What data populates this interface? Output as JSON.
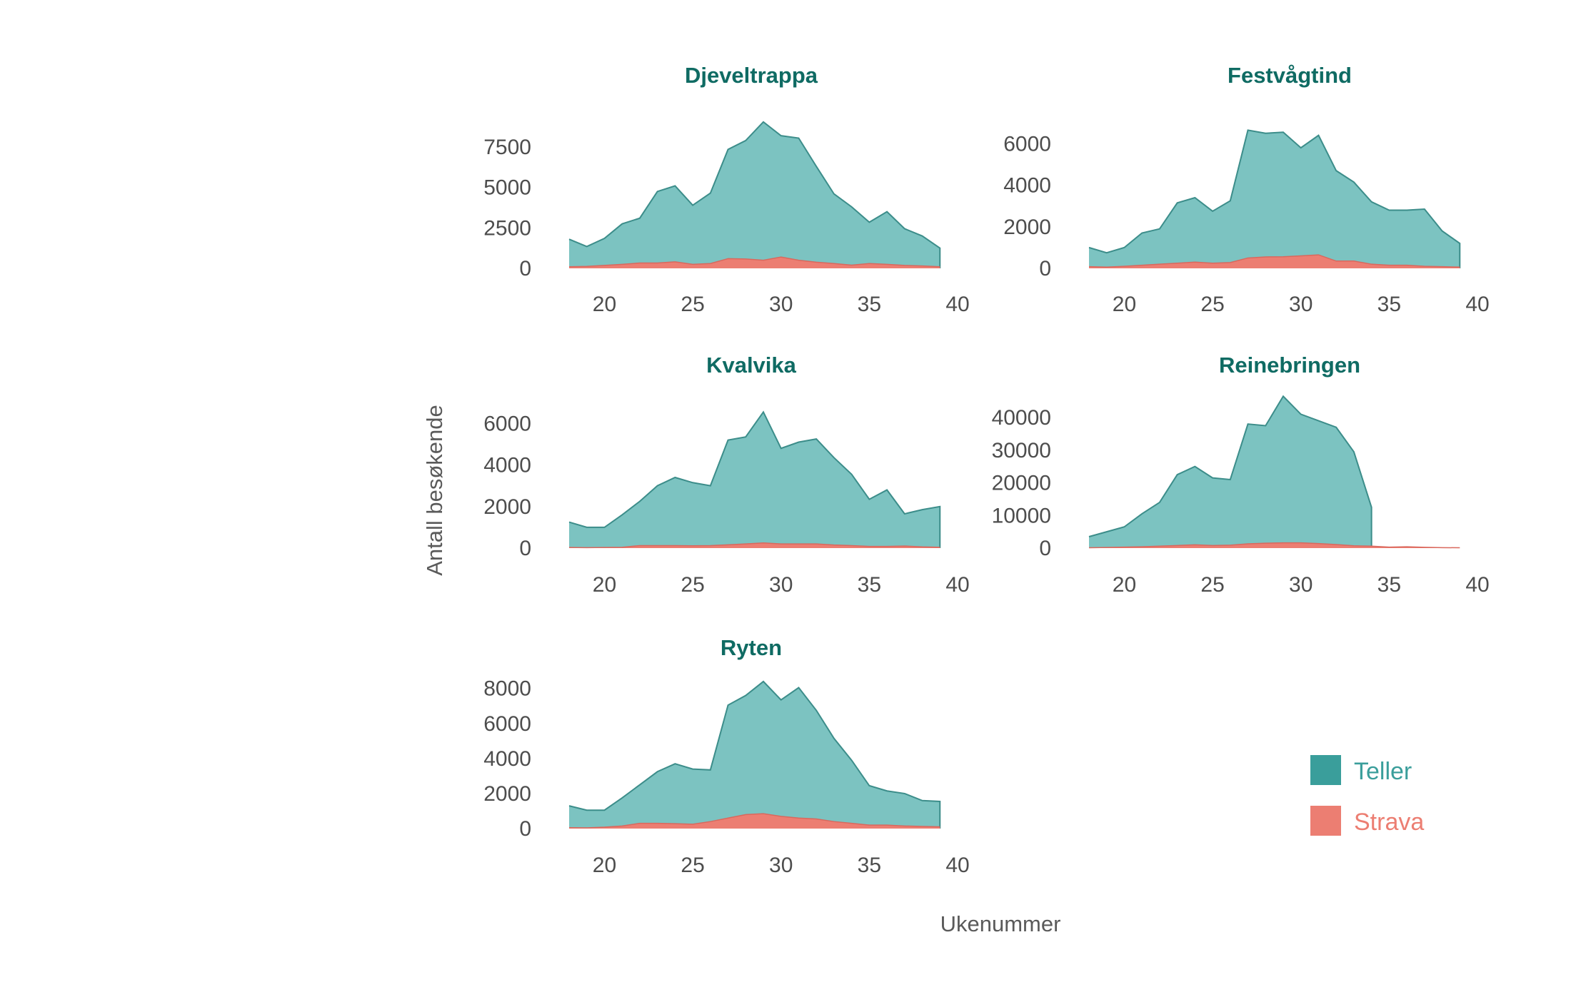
{
  "chart_data": {
    "type": "area",
    "xlabel": "Ukenummer",
    "ylabel": "Antall besøkende",
    "legend": {
      "position": "bottom-right",
      "entries": [
        "Teller",
        "Strava"
      ]
    },
    "colors": {
      "Teller": "#3a9e9b",
      "Strava": "#ec7e72",
      "teller_fill": "#7cc3c1",
      "teller_line": "#3c8d8a",
      "strava_fill": "#ec7e72",
      "title": "#0f6b63"
    },
    "x": [
      18,
      19,
      20,
      21,
      22,
      23,
      24,
      25,
      26,
      27,
      28,
      29,
      30,
      31,
      32,
      33,
      34,
      35,
      36,
      37,
      38,
      39
    ],
    "xticks": [
      20,
      25,
      30,
      35,
      40
    ],
    "xlim": [
      18,
      40
    ],
    "grid": false,
    "panels": [
      {
        "title": "Djeveltrappa",
        "ylim": [
          0,
          9000
        ],
        "yticks": [
          0,
          2500,
          5000,
          7500
        ],
        "series": [
          {
            "name": "Teller",
            "values": [
              1800,
              1350,
              1850,
              2750,
              3100,
              4750,
              5100,
              3900,
              4650,
              7350,
              7900,
              9050,
              8200,
              8050,
              6300,
              4600,
              3800,
              2850,
              3500,
              2450,
              2000,
              1250
            ]
          },
          {
            "name": "Strava",
            "values": [
              100,
              120,
              180,
              250,
              330,
              330,
              400,
              250,
              300,
              600,
              580,
              500,
              700,
              500,
              380,
              300,
              200,
              300,
              250,
              180,
              150,
              100
            ]
          }
        ]
      },
      {
        "title": "Festvågtind",
        "ylim": [
          0,
          6800
        ],
        "yticks": [
          0,
          2000,
          4000,
          6000
        ],
        "series": [
          {
            "name": "Teller",
            "values": [
              1000,
              750,
              1000,
              1700,
              1900,
              3150,
              3400,
              2750,
              3250,
              6650,
              6500,
              6550,
              5800,
              6400,
              4700,
              4150,
              3200,
              2800,
              2800,
              2850,
              1800,
              1200
            ]
          },
          {
            "name": "Strava",
            "values": [
              80,
              60,
              100,
              150,
              200,
              250,
              300,
              250,
              280,
              500,
              550,
              560,
              600,
              650,
              350,
              350,
              200,
              150,
              150,
              100,
              80,
              60
            ]
          }
        ]
      },
      {
        "title": "Kvalvika",
        "ylim": [
          0,
          6800
        ],
        "yticks": [
          0,
          2000,
          4000,
          6000
        ],
        "series": [
          {
            "name": "Teller",
            "values": [
              1250,
              1000,
              1000,
              1600,
              2250,
              3000,
              3400,
              3150,
              3000,
              5200,
              5350,
              6550,
              4800,
              5100,
              5250,
              4350,
              3550,
              2350,
              2800,
              1650,
              1850,
              2000
            ]
          },
          {
            "name": "Strava",
            "values": [
              30,
              20,
              30,
              40,
              120,
              120,
              120,
              110,
              120,
              160,
              200,
              250,
              200,
              200,
              200,
              150,
              120,
              80,
              80,
              100,
              60,
              40
            ]
          }
        ]
      },
      {
        "title": "Reinebringen",
        "ylim": [
          0,
          47000
        ],
        "yticks": [
          0,
          10000,
          20000,
          30000,
          40000
        ],
        "series": [
          {
            "name": "Teller",
            "values": [
              3500,
              5000,
              6500,
              10500,
              14000,
              22500,
              25000,
              21500,
              21000,
              38000,
              37500,
              46500,
              41000,
              39000,
              37000,
              29500,
              12500,
              null,
              null,
              null,
              null,
              null
            ]
          },
          {
            "name": "Strava",
            "values": [
              100,
              200,
              300,
              400,
              600,
              800,
              1000,
              800,
              900,
              1300,
              1500,
              1600,
              1600,
              1400,
              1100,
              700,
              600,
              300,
              400,
              250,
              150,
              100
            ]
          }
        ]
      },
      {
        "title": "Ryten",
        "ylim": [
          0,
          8600
        ],
        "yticks": [
          0,
          2000,
          4000,
          6000,
          8000
        ],
        "series": [
          {
            "name": "Teller",
            "values": [
              1300,
              1050,
              1050,
              1750,
              2500,
              3250,
              3700,
              3400,
              3350,
              7050,
              7600,
              8400,
              7350,
              8050,
              6750,
              5150,
              3900,
              2450,
              2150,
              2000,
              1600,
              1550
            ]
          },
          {
            "name": "Strava",
            "values": [
              50,
              40,
              80,
              150,
              300,
              300,
              280,
              250,
              400,
              600,
              800,
              850,
              700,
              600,
              550,
              400,
              300,
              200,
              200,
              150,
              120,
              100
            ]
          }
        ]
      }
    ]
  }
}
